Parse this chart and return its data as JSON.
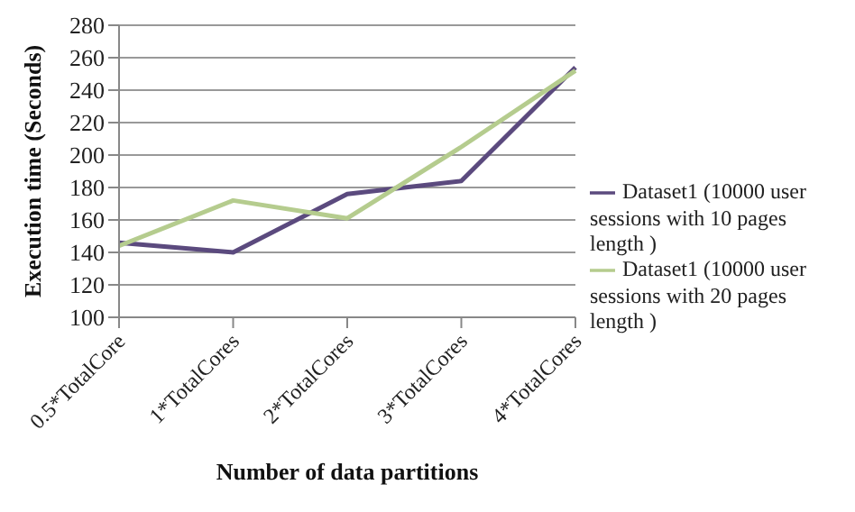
{
  "chart_data": {
    "type": "line",
    "xlabel": "Number of data partitions",
    "ylabel": "Execution time (Seconds)",
    "categories": [
      "0.5*TotalCore",
      "1*TotalCores",
      "2*TotalCores",
      "3*TotalCores",
      "4*TotalCores"
    ],
    "series": [
      {
        "name": "Dataset1 (10000 user sessions  with 10 pages length )",
        "color": "#5b4a7e",
        "values": [
          146,
          140,
          176,
          184,
          254
        ]
      },
      {
        "name": "Dataset1 (10000 user sessions  with 20 pages length )",
        "color": "#b5cc8e",
        "values": [
          144,
          172,
          161,
          205,
          252
        ]
      }
    ],
    "ylim": [
      100,
      280
    ],
    "yticks": [
      100,
      120,
      140,
      160,
      180,
      200,
      220,
      240,
      260,
      280
    ],
    "grid": "y",
    "legend": "right",
    "marker": "none",
    "line_style": "solid"
  }
}
